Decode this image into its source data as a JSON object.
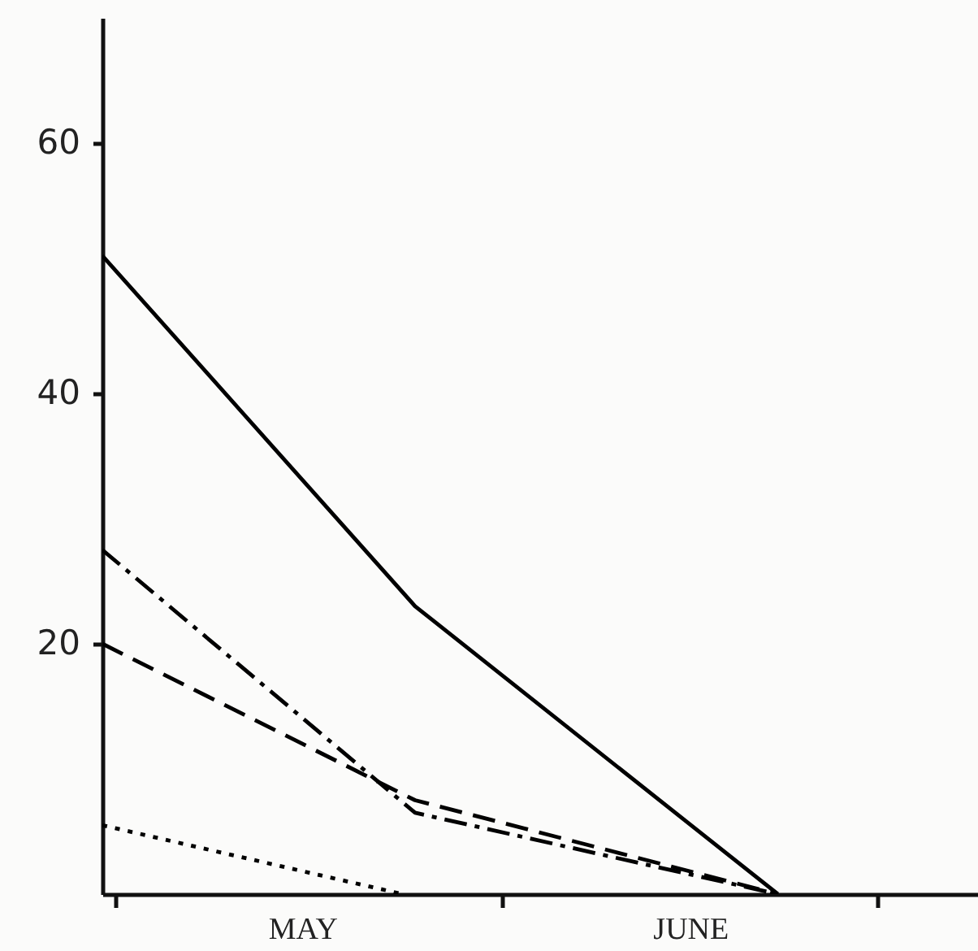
{
  "chart_data": {
    "type": "line",
    "xlim": [
      "--04-30",
      "--07-09"
    ],
    "ylim": [
      0,
      70
    ],
    "xticks": [
      {
        "value": "--05-01",
        "label": null
      },
      {
        "value": "--05-16",
        "label": "MAY"
      },
      {
        "value": "--06-01",
        "label": null
      },
      {
        "value": "--06-16",
        "label": "JUNE"
      },
      {
        "value": "--07-01",
        "label": null
      }
    ],
    "yticks": [
      20,
      40,
      60
    ],
    "series": [
      {
        "color": "#000000",
        "line_style": "solid",
        "x": [
          "--04-30",
          "--05-25",
          "--06-23"
        ],
        "values": [
          51,
          23,
          0
        ]
      },
      {
        "color": "#000000",
        "line_style": "dashdot",
        "x": [
          "--04-30",
          "--05-25",
          "--06-23"
        ],
        "values": [
          27.5,
          6.5,
          0
        ]
      },
      {
        "color": "#000000",
        "line_style": "dashed",
        "x": [
          "--04-30",
          "--05-25",
          "--06-23"
        ],
        "values": [
          20,
          7.5,
          0
        ]
      },
      {
        "color": "#000000",
        "line_style": "dotted",
        "x": [
          "--04-30",
          "--05-24"
        ],
        "values": [
          5.5,
          0
        ]
      }
    ],
    "grid": false,
    "marker": "none"
  }
}
